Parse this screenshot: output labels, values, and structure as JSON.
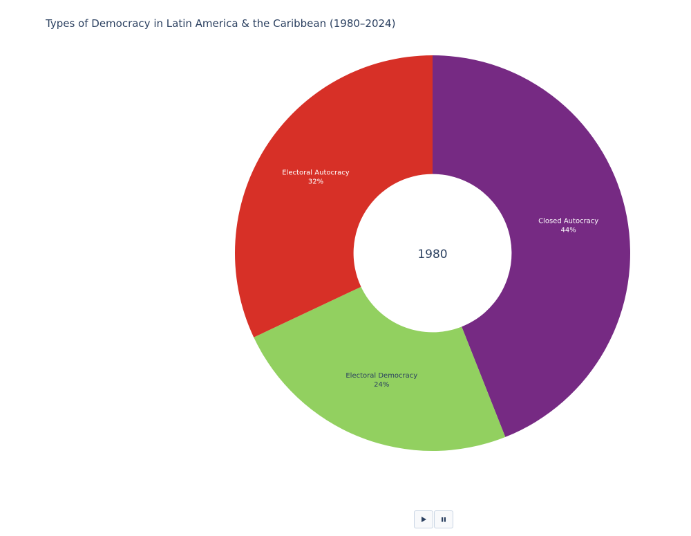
{
  "chart_data": {
    "type": "pie",
    "hole": 0.4,
    "title": "Types of Democracy in Latin America & the Caribbean (1980–2024)",
    "center_label": "1980",
    "slices": [
      {
        "label": "Closed Autocracy",
        "value": 44,
        "percent_text": "44%",
        "color": "#762a83",
        "text_color": "#ffffff"
      },
      {
        "label": "Electoral Democracy",
        "value": 24,
        "percent_text": "24%",
        "color": "#92d060",
        "text_color": "#2a3f5f"
      },
      {
        "label": "Electoral Autocracy",
        "value": 32,
        "percent_text": "32%",
        "color": "#d73027",
        "text_color": "#ffffff"
      }
    ],
    "direction": "clockwise",
    "start_angle_deg": 0
  },
  "controls": {
    "play_icon": "play-icon",
    "pause_icon": "pause-icon"
  }
}
